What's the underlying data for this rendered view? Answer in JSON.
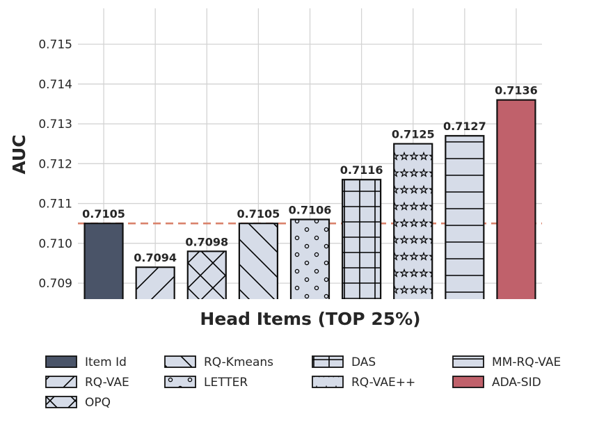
{
  "chart_data": {
    "type": "bar",
    "title": "",
    "xlabel": "Head Items (TOP 25%)",
    "ylabel": "AUC",
    "ylim": [
      0.7086,
      0.7159
    ],
    "yticks": [
      0.709,
      0.71,
      0.711,
      0.712,
      0.713,
      0.714,
      0.715
    ],
    "ytick_labels": [
      "0.709",
      "0.710",
      "0.711",
      "0.712",
      "0.713",
      "0.714",
      "0.715"
    ],
    "grid": true,
    "reference_line": {
      "value": 0.7105,
      "style": "dashed",
      "color": "#d9826b"
    },
    "legend_position": "bottom",
    "bars": [
      {
        "name": "Item Id",
        "value": 0.7105,
        "label": "0.7105",
        "color": "#4a5468",
        "hatch": "none"
      },
      {
        "name": "RQ-VAE",
        "value": 0.7094,
        "label": "0.7094",
        "color": "#d6dce8",
        "hatch": "forward-diagonal"
      },
      {
        "name": "OPQ",
        "value": 0.7098,
        "label": "0.7098",
        "color": "#d6dce8",
        "hatch": "cross-diagonal"
      },
      {
        "name": "RQ-Kmeans",
        "value": 0.7105,
        "label": "0.7105",
        "color": "#d6dce8",
        "hatch": "back-diagonal"
      },
      {
        "name": "LETTER",
        "value": 0.7106,
        "label": "0.7106",
        "color": "#d6dce8",
        "hatch": "circles"
      },
      {
        "name": "DAS",
        "value": 0.7116,
        "label": "0.7116",
        "color": "#d6dce8",
        "hatch": "grid"
      },
      {
        "name": "RQ-VAE++",
        "value": 0.7125,
        "label": "0.7125",
        "color": "#d6dce8",
        "hatch": "stars"
      },
      {
        "name": "MM-RQ-VAE",
        "value": 0.7127,
        "label": "0.7127",
        "color": "#d6dce8",
        "hatch": "horizontal"
      },
      {
        "name": "ADA-SID",
        "value": 0.7136,
        "label": "0.7136",
        "color": "#c0616b",
        "hatch": "none"
      }
    ]
  }
}
